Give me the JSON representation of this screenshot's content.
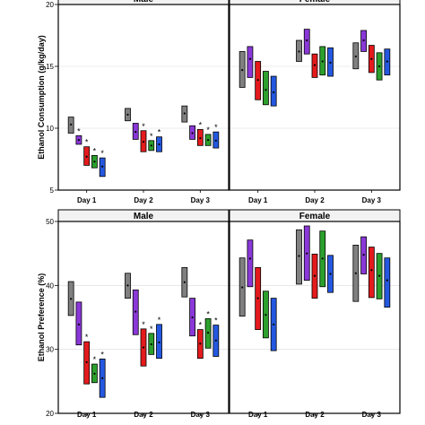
{
  "colors": {
    "group1": "#808080",
    "group2": "#8a38d8",
    "group3": "#e41a1c",
    "group4": "#2ca02c",
    "group5": "#2458e0",
    "grid": "#d9d9d9",
    "strip_bg": "#f2f2f2"
  },
  "chart_data": [
    {
      "type": "box",
      "ylabel": "Ethanol Consumption (g/kg/day)",
      "ylim": [
        5,
        20
      ],
      "yticks": [
        5,
        10,
        15,
        20
      ],
      "grid": true,
      "panels": [
        {
          "name": "Male",
          "categories": [
            "Day 1",
            "Day 2",
            "Day 3"
          ],
          "boxes": [
            [
              {
                "low": 9.6,
                "high": 10.9,
                "mean": 10.3,
                "star": false
              },
              {
                "low": 8.7,
                "high": 9.4,
                "mean": 9.05,
                "star": true
              },
              {
                "low": 7.0,
                "high": 8.5,
                "mean": 7.7,
                "star": true
              },
              {
                "low": 6.8,
                "high": 7.8,
                "mean": 7.3,
                "star": true
              },
              {
                "low": 6.1,
                "high": 7.6,
                "mean": 6.9,
                "star": true
              }
            ],
            [
              {
                "low": 10.6,
                "high": 11.6,
                "mean": 11.1,
                "star": false
              },
              {
                "low": 9.1,
                "high": 10.4,
                "mean": 9.7,
                "star": false
              },
              {
                "low": 8.1,
                "high": 9.8,
                "mean": 8.9,
                "star": true
              },
              {
                "low": 8.2,
                "high": 9.0,
                "mean": 8.6,
                "star": true
              },
              {
                "low": 8.1,
                "high": 9.3,
                "mean": 8.7,
                "star": true
              }
            ],
            [
              {
                "low": 10.5,
                "high": 11.8,
                "mean": 11.2,
                "star": false
              },
              {
                "low": 9.1,
                "high": 10.2,
                "mean": 9.6,
                "star": false
              },
              {
                "low": 8.6,
                "high": 9.9,
                "mean": 9.2,
                "star": true
              },
              {
                "low": 8.6,
                "high": 9.5,
                "mean": 9.05,
                "star": true
              },
              {
                "low": 8.4,
                "high": 9.7,
                "mean": 9.0,
                "star": true
              }
            ]
          ]
        },
        {
          "name": "Female",
          "categories": [
            "Day 1",
            "Day 2",
            "Day 3"
          ],
          "boxes": [
            [
              {
                "low": 13.3,
                "high": 16.2,
                "mean": 14.7,
                "star": false
              },
              {
                "low": 14.1,
                "high": 16.6,
                "mean": 15.6,
                "star": false
              },
              {
                "low": 12.3,
                "high": 15.4,
                "mean": 13.9,
                "star": false
              },
              {
                "low": 11.9,
                "high": 14.6,
                "mean": 13.1,
                "star": false
              },
              {
                "low": 11.8,
                "high": 14.2,
                "mean": 12.9,
                "star": false
              }
            ],
            [
              {
                "low": 15.4,
                "high": 17.1,
                "mean": 16.2,
                "star": false
              },
              {
                "low": 16.0,
                "high": 18.0,
                "mean": 17.1,
                "star": false
              },
              {
                "low": 14.1,
                "high": 16.0,
                "mean": 15.1,
                "star": false
              },
              {
                "low": 14.3,
                "high": 16.6,
                "mean": 15.4,
                "star": false
              },
              {
                "low": 14.2,
                "high": 16.5,
                "mean": 15.3,
                "star": false
              }
            ],
            [
              {
                "low": 14.8,
                "high": 16.9,
                "mean": 15.8,
                "star": false
              },
              {
                "low": 16.2,
                "high": 17.9,
                "mean": 17.1,
                "star": false
              },
              {
                "low": 14.5,
                "high": 16.7,
                "mean": 15.6,
                "star": false
              },
              {
                "low": 13.9,
                "high": 16.1,
                "mean": 15.0,
                "star": false
              },
              {
                "low": 14.3,
                "high": 16.4,
                "mean": 15.4,
                "star": false
              }
            ]
          ]
        }
      ]
    },
    {
      "type": "box",
      "ylabel": "Ethanol Preference (%)",
      "ylim": [
        20,
        50
      ],
      "yticks": [
        20,
        30,
        40,
        50
      ],
      "grid": true,
      "panels": [
        {
          "name": "Male",
          "categories": [
            "Day 1",
            "Day 2",
            "Day 3"
          ],
          "boxes": [
            [
              {
                "low": 35.3,
                "high": 40.6,
                "mean": 37.9,
                "star": false
              },
              {
                "low": 30.7,
                "high": 37.4,
                "mean": 33.9,
                "star": false
              },
              {
                "low": 24.6,
                "high": 31.2,
                "mean": 28.0,
                "star": true
              },
              {
                "low": 24.8,
                "high": 27.7,
                "mean": 26.2,
                "star": true
              },
              {
                "low": 22.5,
                "high": 28.5,
                "mean": 25.5,
                "star": true
              }
            ],
            [
              {
                "low": 38.0,
                "high": 41.9,
                "mean": 40.0,
                "star": false
              },
              {
                "low": 32.3,
                "high": 39.3,
                "mean": 35.9,
                "star": false
              },
              {
                "low": 27.4,
                "high": 33.2,
                "mean": 30.3,
                "star": true
              },
              {
                "low": 29.2,
                "high": 32.5,
                "mean": 30.8,
                "star": true
              },
              {
                "low": 28.6,
                "high": 33.9,
                "mean": 31.1,
                "star": true
              }
            ],
            [
              {
                "low": 38.2,
                "high": 42.8,
                "mean": 40.5,
                "star": false
              },
              {
                "low": 32.1,
                "high": 38.0,
                "mean": 35.0,
                "star": false
              },
              {
                "low": 28.6,
                "high": 33.1,
                "mean": 30.9,
                "star": true
              },
              {
                "low": 30.2,
                "high": 34.8,
                "mean": 32.6,
                "star": true
              },
              {
                "low": 28.9,
                "high": 33.8,
                "mean": 31.4,
                "star": true
              }
            ]
          ]
        },
        {
          "name": "Female",
          "categories": [
            "Day 1",
            "Day 2",
            "Day 3"
          ],
          "boxes": [
            [
              {
                "low": 35.2,
                "high": 44.3,
                "mean": 39.7,
                "star": false
              },
              {
                "low": 39.8,
                "high": 47.1,
                "mean": 44.2,
                "star": false
              },
              {
                "low": 33.1,
                "high": 42.8,
                "mean": 38.0,
                "star": false
              },
              {
                "low": 31.8,
                "high": 39.1,
                "mean": 35.4,
                "star": false
              },
              {
                "low": 29.8,
                "high": 38.0,
                "mean": 33.9,
                "star": false
              }
            ],
            [
              {
                "low": 40.2,
                "high": 48.7,
                "mean": 44.6,
                "star": false
              },
              {
                "low": 40.8,
                "high": 49.3,
                "mean": 45.0,
                "star": false
              },
              {
                "low": 38.0,
                "high": 44.9,
                "mean": 41.5,
                "star": false
              },
              {
                "low": 39.8,
                "high": 48.5,
                "mean": 44.2,
                "star": false
              },
              {
                "low": 38.9,
                "high": 44.7,
                "mean": 41.8,
                "star": false
              }
            ],
            [
              {
                "low": 37.5,
                "high": 46.3,
                "mean": 41.9,
                "star": false
              },
              {
                "low": 41.8,
                "high": 47.6,
                "mean": 44.8,
                "star": false
              },
              {
                "low": 38.1,
                "high": 46.0,
                "mean": 42.4,
                "star": false
              },
              {
                "low": 37.9,
                "high": 45.0,
                "mean": 41.5,
                "star": false
              },
              {
                "low": 36.6,
                "high": 44.3,
                "mean": 40.8,
                "star": false
              }
            ]
          ]
        }
      ]
    }
  ]
}
